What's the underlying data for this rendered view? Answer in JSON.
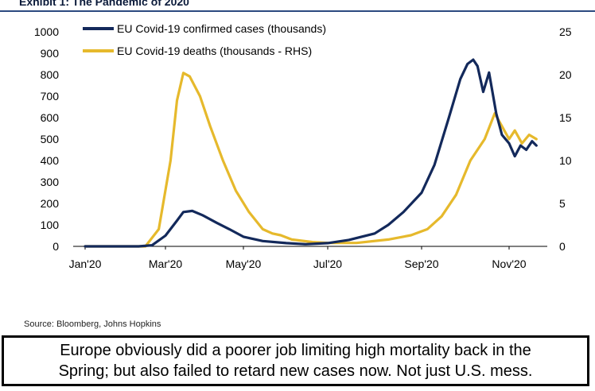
{
  "title": "Exhibit 1: The Pandemic of 2020",
  "source": "Source: Bloomberg, Johns Hopkins",
  "caption": {
    "line1": "Europe obviously did a poorer job limiting high mortality back in the",
    "line2": "Spring; but also failed to retard new cases now. Not just U.S. mess."
  },
  "colors": {
    "cases": "#13295b",
    "deaths": "#e6b92c",
    "title_rule": "#2c4a80"
  },
  "chart_data": {
    "type": "line",
    "legend_position": "top-left",
    "grid": false,
    "x_axis": {
      "ticks": [
        "Jan'20",
        "Mar'20",
        "May'20",
        "Jul'20",
        "Sep'20",
        "Nov'20"
      ],
      "tick_dates": [
        "2020-01-01",
        "2020-03-01",
        "2020-05-01",
        "2020-07-01",
        "2020-09-01",
        "2020-11-01"
      ],
      "range": [
        "2020-01-01",
        "2020-11-20"
      ]
    },
    "y_left": {
      "ticks": [
        0,
        100,
        200,
        300,
        400,
        500,
        600,
        700,
        800,
        900,
        1000
      ],
      "range": [
        0,
        1000
      ]
    },
    "y_right": {
      "ticks": [
        0,
        5,
        10,
        15,
        20,
        25
      ],
      "range": [
        0,
        25
      ]
    },
    "series": [
      {
        "name": "EU Covid-19 confirmed cases (thousands)",
        "axis": "left",
        "points": [
          [
            "2020-01-01",
            0
          ],
          [
            "2020-02-10",
            0
          ],
          [
            "2020-02-20",
            5
          ],
          [
            "2020-03-01",
            50
          ],
          [
            "2020-03-10",
            120
          ],
          [
            "2020-03-15",
            160
          ],
          [
            "2020-03-22",
            165
          ],
          [
            "2020-03-30",
            145
          ],
          [
            "2020-04-10",
            110
          ],
          [
            "2020-04-20",
            80
          ],
          [
            "2020-05-01",
            45
          ],
          [
            "2020-05-15",
            25
          ],
          [
            "2020-06-01",
            15
          ],
          [
            "2020-06-15",
            10
          ],
          [
            "2020-07-01",
            15
          ],
          [
            "2020-07-15",
            30
          ],
          [
            "2020-08-01",
            60
          ],
          [
            "2020-08-10",
            100
          ],
          [
            "2020-08-20",
            160
          ],
          [
            "2020-09-01",
            250
          ],
          [
            "2020-09-10",
            380
          ],
          [
            "2020-09-20",
            600
          ],
          [
            "2020-09-28",
            780
          ],
          [
            "2020-10-03",
            850
          ],
          [
            "2020-10-07",
            870
          ],
          [
            "2020-10-10",
            840
          ],
          [
            "2020-10-14",
            720
          ],
          [
            "2020-10-18",
            810
          ],
          [
            "2020-10-23",
            620
          ],
          [
            "2020-10-27",
            520
          ],
          [
            "2020-11-01",
            480
          ],
          [
            "2020-11-05",
            420
          ],
          [
            "2020-11-09",
            470
          ],
          [
            "2020-11-13",
            450
          ],
          [
            "2020-11-17",
            490
          ],
          [
            "2020-11-20",
            470
          ]
        ]
      },
      {
        "name": "EU Covid-19 deaths (thousands - RHS)",
        "axis": "right",
        "points": [
          [
            "2020-01-01",
            0
          ],
          [
            "2020-02-15",
            0
          ],
          [
            "2020-02-25",
            2
          ],
          [
            "2020-03-05",
            10
          ],
          [
            "2020-03-10",
            17
          ],
          [
            "2020-03-15",
            20.2
          ],
          [
            "2020-03-20",
            19.8
          ],
          [
            "2020-03-28",
            17.5
          ],
          [
            "2020-04-05",
            14
          ],
          [
            "2020-04-15",
            10
          ],
          [
            "2020-04-25",
            6.5
          ],
          [
            "2020-05-05",
            4
          ],
          [
            "2020-05-15",
            2
          ],
          [
            "2020-05-22",
            1.5
          ],
          [
            "2020-05-28",
            1.3
          ],
          [
            "2020-06-05",
            0.8
          ],
          [
            "2020-06-20",
            0.5
          ],
          [
            "2020-07-01",
            0.4
          ],
          [
            "2020-07-20",
            0.4
          ],
          [
            "2020-08-10",
            0.8
          ],
          [
            "2020-08-25",
            1.3
          ],
          [
            "2020-09-05",
            2
          ],
          [
            "2020-09-15",
            3.5
          ],
          [
            "2020-09-25",
            6
          ],
          [
            "2020-10-05",
            10
          ],
          [
            "2020-10-15",
            12.5
          ],
          [
            "2020-10-22",
            15.5
          ],
          [
            "2020-10-27",
            14
          ],
          [
            "2020-11-01",
            12.5
          ],
          [
            "2020-11-05",
            13.5
          ],
          [
            "2020-11-10",
            12
          ],
          [
            "2020-11-15",
            13
          ],
          [
            "2020-11-20",
            12.5
          ]
        ]
      }
    ]
  }
}
